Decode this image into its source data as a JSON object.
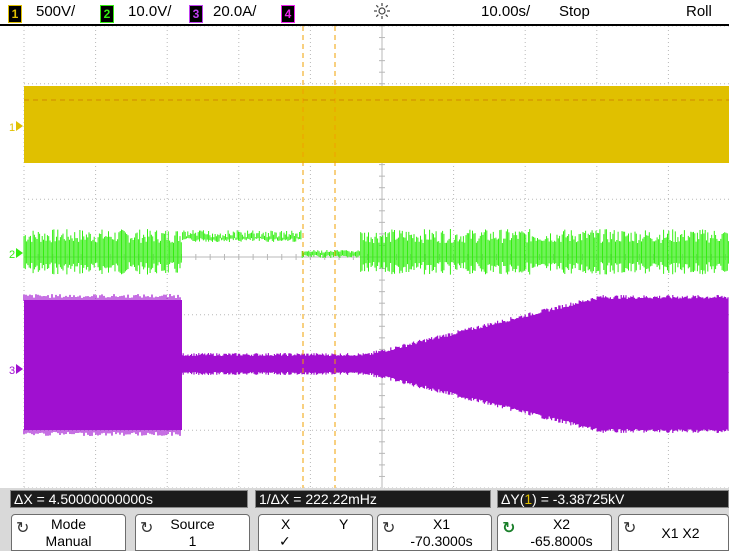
{
  "header": {
    "ch1_num": "1",
    "ch1_scale": "500V/",
    "ch2_num": "2",
    "ch2_scale": "10.0V/",
    "ch3_num": "3",
    "ch3_scale": "20.0A/",
    "ch4_num": "4",
    "timebase": "10.00s/",
    "run_state": "Stop",
    "mode": "Roll"
  },
  "colors": {
    "ch1": "#e0c000",
    "ch2": "#33ee11",
    "ch3": "#a010d0",
    "ch4": "#ee22ee",
    "grid": "#b8b8b8",
    "cursor": "#f0a000"
  },
  "markers": {
    "ch1": "1",
    "ch2": "2",
    "ch3": "3"
  },
  "measurements": {
    "delta_x": "ΔX = 4.50000000000s",
    "inv_delta_x": "1/ΔX = 222.22mHz",
    "delta_y_prefix": "ΔY(",
    "delta_y_ch": "1",
    "delta_y_suffix": ") = -3.38725kV"
  },
  "softkeys": {
    "mode_label": "Mode",
    "mode_value": "Manual",
    "source_label": "Source",
    "source_value": "1",
    "x_label": "X",
    "y_label": "Y",
    "check": "✓",
    "x1_label": "X1",
    "x1_value": "-70.3000s",
    "x2_label": "X2",
    "x2_value": "-65.8000s",
    "x1x2_label": "X1 X2"
  },
  "icons": {
    "trigger": "sun-icon",
    "knob": "knob-icon"
  }
}
